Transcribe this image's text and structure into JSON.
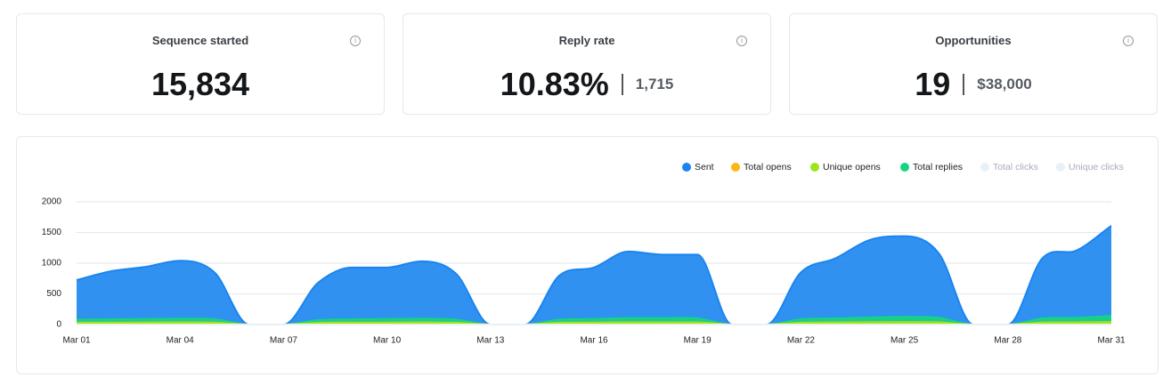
{
  "cards": [
    {
      "title": "Sequence started",
      "value": "15,834"
    },
    {
      "title": "Reply rate",
      "value": "10.83%",
      "secondary": "1,715"
    },
    {
      "title": "Opportunities",
      "value": "19",
      "secondary": "$38,000"
    }
  ],
  "chart_data": {
    "type": "area",
    "categories": [
      "Mar 01",
      null,
      null,
      "Mar 04",
      null,
      null,
      "Mar 07",
      null,
      null,
      "Mar 10",
      null,
      null,
      "Mar 13",
      null,
      null,
      "Mar 16",
      null,
      null,
      "Mar 19",
      null,
      null,
      "Mar 22",
      null,
      null,
      "Mar 25",
      null,
      null,
      "Mar 28",
      null,
      null,
      "Mar 31"
    ],
    "ylim": [
      0,
      2000
    ],
    "yticks": [
      0,
      500,
      1000,
      1500,
      2000
    ],
    "grid": true,
    "legend": "top-right",
    "series": [
      {
        "name": "Sent",
        "color": "#1a85f0",
        "values": [
          725,
          870,
          940,
          1040,
          850,
          0,
          0,
          680,
          930,
          930,
          1030,
          830,
          0,
          0,
          800,
          930,
          1190,
          1140,
          1140,
          0,
          0,
          850,
          1080,
          1380,
          1440,
          1160,
          0,
          0,
          1080,
          1210,
          1610
        ]
      },
      {
        "name": "Total opens",
        "color": "#fbb614",
        "values": [
          30,
          32,
          34,
          36,
          32,
          0,
          0,
          28,
          32,
          33,
          35,
          30,
          0,
          0,
          30,
          33,
          36,
          35,
          35,
          0,
          0,
          30,
          34,
          38,
          40,
          36,
          0,
          0,
          34,
          36,
          42
        ]
      },
      {
        "name": "Unique opens",
        "color": "#9be51d",
        "values": [
          25,
          27,
          29,
          30,
          27,
          0,
          0,
          24,
          27,
          28,
          30,
          26,
          0,
          0,
          25,
          28,
          31,
          30,
          30,
          0,
          0,
          26,
          29,
          32,
          34,
          30,
          0,
          0,
          29,
          31,
          36
        ]
      },
      {
        "name": "Total replies",
        "color": "#14d67f",
        "values": [
          80,
          85,
          90,
          95,
          85,
          0,
          0,
          70,
          85,
          90,
          95,
          80,
          0,
          0,
          80,
          90,
          105,
          105,
          100,
          0,
          0,
          85,
          100,
          115,
          125,
          110,
          0,
          0,
          100,
          110,
          140
        ]
      },
      {
        "name": "Total clicks",
        "color": "#e8f1f8",
        "values": [
          0,
          0,
          0,
          0,
          0,
          0,
          0,
          0,
          0,
          0,
          0,
          0,
          0,
          0,
          0,
          0,
          0,
          0,
          0,
          0,
          0,
          0,
          0,
          0,
          0,
          0,
          0,
          0,
          0,
          0,
          0
        ]
      },
      {
        "name": "Unique clicks",
        "color": "#e8f1f8",
        "values": [
          0,
          0,
          0,
          0,
          0,
          0,
          0,
          0,
          0,
          0,
          0,
          0,
          0,
          0,
          0,
          0,
          0,
          0,
          0,
          0,
          0,
          0,
          0,
          0,
          0,
          0,
          0,
          0,
          0,
          0,
          0
        ]
      }
    ]
  }
}
